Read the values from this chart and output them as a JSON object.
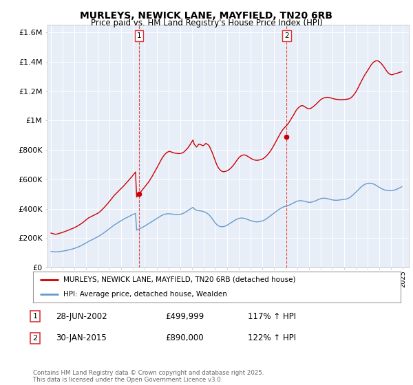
{
  "title": "MURLEYS, NEWICK LANE, MAYFIELD, TN20 6RB",
  "subtitle": "Price paid vs. HM Land Registry's House Price Index (HPI)",
  "background_color": "#ffffff",
  "plot_bg_color": "#e8eef8",
  "legend_label_red": "MURLEYS, NEWICK LANE, MAYFIELD, TN20 6RB (detached house)",
  "legend_label_blue": "HPI: Average price, detached house, Wealden",
  "annotation1_label": "1",
  "annotation1_date": "28-JUN-2002",
  "annotation1_price": "£499,999",
  "annotation1_hpi": "117% ↑ HPI",
  "annotation2_label": "2",
  "annotation2_date": "30-JAN-2015",
  "annotation2_price": "£890,000",
  "annotation2_hpi": "122% ↑ HPI",
  "footer": "Contains HM Land Registry data © Crown copyright and database right 2025.\nThis data is licensed under the Open Government Licence v3.0.",
  "red_color": "#cc0000",
  "blue_color": "#6699cc",
  "vline_color": "#dd3333",
  "ylim": [
    0,
    1650000
  ],
  "yticks": [
    0,
    200000,
    400000,
    600000,
    800000,
    1000000,
    1200000,
    1400000,
    1600000
  ],
  "ytick_labels": [
    "£0",
    "£200K",
    "£400K",
    "£600K",
    "£800K",
    "£1M",
    "£1.2M",
    "£1.4M",
    "£1.6M"
  ],
  "xmin": 1994.7,
  "xmax": 2025.5,
  "red_x": [
    1995.0,
    1995.1,
    1995.2,
    1995.3,
    1995.4,
    1995.5,
    1995.6,
    1995.7,
    1995.8,
    1995.9,
    1996.0,
    1996.1,
    1996.2,
    1996.3,
    1996.4,
    1996.5,
    1996.6,
    1996.7,
    1996.8,
    1996.9,
    1997.0,
    1997.1,
    1997.2,
    1997.3,
    1997.4,
    1997.5,
    1997.6,
    1997.7,
    1997.8,
    1997.9,
    1998.0,
    1998.1,
    1998.2,
    1998.3,
    1998.4,
    1998.5,
    1998.6,
    1998.7,
    1998.8,
    1998.9,
    1999.0,
    1999.1,
    1999.2,
    1999.3,
    1999.4,
    1999.5,
    1999.6,
    1999.7,
    1999.8,
    1999.9,
    2000.0,
    2000.1,
    2000.2,
    2000.3,
    2000.4,
    2000.5,
    2000.6,
    2000.7,
    2000.8,
    2000.9,
    2001.0,
    2001.1,
    2001.2,
    2001.3,
    2001.4,
    2001.5,
    2001.6,
    2001.7,
    2001.8,
    2001.9,
    2002.0,
    2002.1,
    2002.2,
    2002.3,
    2002.4,
    2002.5,
    2002.6,
    2002.7,
    2002.8,
    2002.9,
    2003.0,
    2003.1,
    2003.2,
    2003.3,
    2003.4,
    2003.5,
    2003.6,
    2003.7,
    2003.8,
    2003.9,
    2004.0,
    2004.1,
    2004.2,
    2004.3,
    2004.4,
    2004.5,
    2004.6,
    2004.7,
    2004.8,
    2004.9,
    2005.0,
    2005.1,
    2005.2,
    2005.3,
    2005.4,
    2005.5,
    2005.6,
    2005.7,
    2005.8,
    2005.9,
    2006.0,
    2006.1,
    2006.2,
    2006.3,
    2006.4,
    2006.5,
    2006.6,
    2006.7,
    2006.8,
    2006.9,
    2007.0,
    2007.1,
    2007.2,
    2007.3,
    2007.4,
    2007.5,
    2007.6,
    2007.7,
    2007.8,
    2007.9,
    2008.0,
    2008.1,
    2008.2,
    2008.3,
    2008.4,
    2008.5,
    2008.6,
    2008.7,
    2008.8,
    2008.9,
    2009.0,
    2009.1,
    2009.2,
    2009.3,
    2009.4,
    2009.5,
    2009.6,
    2009.7,
    2009.8,
    2009.9,
    2010.0,
    2010.1,
    2010.2,
    2010.3,
    2010.4,
    2010.5,
    2010.6,
    2010.7,
    2010.8,
    2010.9,
    2011.0,
    2011.1,
    2011.2,
    2011.3,
    2011.4,
    2011.5,
    2011.6,
    2011.7,
    2011.8,
    2011.9,
    2012.0,
    2012.1,
    2012.2,
    2012.3,
    2012.4,
    2012.5,
    2012.6,
    2012.7,
    2012.8,
    2012.9,
    2013.0,
    2013.1,
    2013.2,
    2013.3,
    2013.4,
    2013.5,
    2013.6,
    2013.7,
    2013.8,
    2013.9,
    2014.0,
    2014.1,
    2014.2,
    2014.3,
    2014.4,
    2014.5,
    2014.6,
    2014.7,
    2014.8,
    2014.9,
    2015.0,
    2015.1,
    2015.2,
    2015.3,
    2015.4,
    2015.5,
    2015.6,
    2015.7,
    2015.8,
    2015.9,
    2016.0,
    2016.1,
    2016.2,
    2016.3,
    2016.4,
    2016.5,
    2016.6,
    2016.7,
    2016.8,
    2016.9,
    2017.0,
    2017.1,
    2017.2,
    2017.3,
    2017.4,
    2017.5,
    2017.6,
    2017.7,
    2017.8,
    2017.9,
    2018.0,
    2018.1,
    2018.2,
    2018.3,
    2018.4,
    2018.5,
    2018.6,
    2018.7,
    2018.8,
    2018.9,
    2019.0,
    2019.1,
    2019.2,
    2019.3,
    2019.4,
    2019.5,
    2019.6,
    2019.7,
    2019.8,
    2019.9,
    2020.0,
    2020.1,
    2020.2,
    2020.3,
    2020.4,
    2020.5,
    2020.6,
    2020.7,
    2020.8,
    2020.9,
    2021.0,
    2021.1,
    2021.2,
    2021.3,
    2021.4,
    2021.5,
    2021.6,
    2021.7,
    2021.8,
    2021.9,
    2022.0,
    2022.1,
    2022.2,
    2022.3,
    2022.4,
    2022.5,
    2022.6,
    2022.7,
    2022.8,
    2022.9,
    2023.0,
    2023.1,
    2023.2,
    2023.3,
    2023.4,
    2023.5,
    2023.6,
    2023.7,
    2023.8,
    2023.9,
    2024.0,
    2024.1,
    2024.2,
    2024.3,
    2024.4,
    2024.5,
    2024.6,
    2024.7,
    2024.8,
    2024.9
  ],
  "red_y": [
    235000,
    232000,
    230000,
    228000,
    226000,
    228000,
    230000,
    233000,
    235000,
    237000,
    240000,
    243000,
    246000,
    249000,
    252000,
    255000,
    258000,
    262000,
    265000,
    268000,
    272000,
    276000,
    280000,
    285000,
    290000,
    295000,
    300000,
    306000,
    312000,
    318000,
    325000,
    332000,
    338000,
    342000,
    346000,
    350000,
    354000,
    358000,
    362000,
    366000,
    370000,
    376000,
    382000,
    390000,
    398000,
    406000,
    415000,
    424000,
    433000,
    442000,
    452000,
    462000,
    472000,
    482000,
    492000,
    500000,
    508000,
    516000,
    524000,
    532000,
    540000,
    548000,
    556000,
    565000,
    574000,
    583000,
    592000,
    601000,
    610000,
    619000,
    630000,
    640000,
    650000,
    480000,
    490000,
    500000,
    510000,
    520000,
    530000,
    540000,
    550000,
    560000,
    570000,
    580000,
    592000,
    605000,
    618000,
    632000,
    646000,
    660000,
    675000,
    690000,
    705000,
    720000,
    735000,
    748000,
    760000,
    770000,
    778000,
    784000,
    788000,
    790000,
    788000,
    785000,
    782000,
    780000,
    778000,
    777000,
    776000,
    775000,
    776000,
    778000,
    780000,
    785000,
    792000,
    800000,
    808000,
    818000,
    830000,
    842000,
    856000,
    868000,
    840000,
    830000,
    820000,
    830000,
    840000,
    838000,
    835000,
    830000,
    830000,
    838000,
    845000,
    840000,
    835000,
    825000,
    808000,
    790000,
    770000,
    748000,
    725000,
    705000,
    688000,
    675000,
    665000,
    658000,
    654000,
    652000,
    653000,
    655000,
    658000,
    662000,
    668000,
    675000,
    683000,
    692000,
    702000,
    713000,
    725000,
    736000,
    746000,
    754000,
    760000,
    764000,
    766000,
    766000,
    764000,
    760000,
    755000,
    750000,
    745000,
    740000,
    736000,
    733000,
    731000,
    730000,
    730000,
    731000,
    733000,
    735000,
    738000,
    742000,
    748000,
    755000,
    763000,
    772000,
    782000,
    793000,
    805000,
    818000,
    832000,
    847000,
    862000,
    877000,
    892000,
    906000,
    920000,
    932000,
    943000,
    952000,
    960000,
    968000,
    978000,
    990000,
    1003000,
    1016000,
    1029000,
    1042000,
    1056000,
    1070000,
    1080000,
    1088000,
    1095000,
    1100000,
    1102000,
    1100000,
    1096000,
    1090000,
    1085000,
    1082000,
    1080000,
    1082000,
    1086000,
    1092000,
    1098000,
    1105000,
    1112000,
    1120000,
    1128000,
    1136000,
    1143000,
    1148000,
    1152000,
    1155000,
    1157000,
    1158000,
    1158000,
    1157000,
    1155000,
    1153000,
    1150000,
    1148000,
    1146000,
    1145000,
    1144000,
    1143000,
    1143000,
    1142000,
    1142000,
    1143000,
    1143000,
    1144000,
    1145000,
    1146000,
    1148000,
    1152000,
    1158000,
    1165000,
    1175000,
    1185000,
    1198000,
    1212000,
    1228000,
    1244000,
    1260000,
    1275000,
    1290000,
    1305000,
    1318000,
    1330000,
    1342000,
    1355000,
    1368000,
    1380000,
    1390000,
    1398000,
    1403000,
    1406000,
    1407000,
    1405000,
    1400000,
    1392000,
    1383000,
    1373000,
    1362000,
    1350000,
    1338000,
    1328000,
    1320000,
    1315000,
    1312000,
    1312000,
    1315000,
    1318000,
    1320000,
    1322000,
    1325000,
    1328000,
    1330000,
    1332000
  ],
  "blue_x": [
    1995.0,
    1995.1,
    1995.2,
    1995.3,
    1995.4,
    1995.5,
    1995.6,
    1995.7,
    1995.8,
    1995.9,
    1996.0,
    1996.1,
    1996.2,
    1996.3,
    1996.4,
    1996.5,
    1996.6,
    1996.7,
    1996.8,
    1996.9,
    1997.0,
    1997.1,
    1997.2,
    1997.3,
    1997.4,
    1997.5,
    1997.6,
    1997.7,
    1997.8,
    1997.9,
    1998.0,
    1998.1,
    1998.2,
    1998.3,
    1998.4,
    1998.5,
    1998.6,
    1998.7,
    1998.8,
    1998.9,
    1999.0,
    1999.1,
    1999.2,
    1999.3,
    1999.4,
    1999.5,
    1999.6,
    1999.7,
    1999.8,
    1999.9,
    2000.0,
    2000.1,
    2000.2,
    2000.3,
    2000.4,
    2000.5,
    2000.6,
    2000.7,
    2000.8,
    2000.9,
    2001.0,
    2001.1,
    2001.2,
    2001.3,
    2001.4,
    2001.5,
    2001.6,
    2001.7,
    2001.8,
    2001.9,
    2002.0,
    2002.1,
    2002.2,
    2002.3,
    2002.4,
    2002.5,
    2002.6,
    2002.7,
    2002.8,
    2002.9,
    2003.0,
    2003.1,
    2003.2,
    2003.3,
    2003.4,
    2003.5,
    2003.6,
    2003.7,
    2003.8,
    2003.9,
    2004.0,
    2004.1,
    2004.2,
    2004.3,
    2004.4,
    2004.5,
    2004.6,
    2004.7,
    2004.8,
    2004.9,
    2005.0,
    2005.1,
    2005.2,
    2005.3,
    2005.4,
    2005.5,
    2005.6,
    2005.7,
    2005.8,
    2005.9,
    2006.0,
    2006.1,
    2006.2,
    2006.3,
    2006.4,
    2006.5,
    2006.6,
    2006.7,
    2006.8,
    2006.9,
    2007.0,
    2007.1,
    2007.2,
    2007.3,
    2007.4,
    2007.5,
    2007.6,
    2007.7,
    2007.8,
    2007.9,
    2008.0,
    2008.1,
    2008.2,
    2008.3,
    2008.4,
    2008.5,
    2008.6,
    2008.7,
    2008.8,
    2008.9,
    2009.0,
    2009.1,
    2009.2,
    2009.3,
    2009.4,
    2009.5,
    2009.6,
    2009.7,
    2009.8,
    2009.9,
    2010.0,
    2010.1,
    2010.2,
    2010.3,
    2010.4,
    2010.5,
    2010.6,
    2010.7,
    2010.8,
    2010.9,
    2011.0,
    2011.1,
    2011.2,
    2011.3,
    2011.4,
    2011.5,
    2011.6,
    2011.7,
    2011.8,
    2011.9,
    2012.0,
    2012.1,
    2012.2,
    2012.3,
    2012.4,
    2012.5,
    2012.6,
    2012.7,
    2012.8,
    2012.9,
    2013.0,
    2013.1,
    2013.2,
    2013.3,
    2013.4,
    2013.5,
    2013.6,
    2013.7,
    2013.8,
    2013.9,
    2014.0,
    2014.1,
    2014.2,
    2014.3,
    2014.4,
    2014.5,
    2014.6,
    2014.7,
    2014.8,
    2014.9,
    2015.0,
    2015.1,
    2015.2,
    2015.3,
    2015.4,
    2015.5,
    2015.6,
    2015.7,
    2015.8,
    2015.9,
    2016.0,
    2016.1,
    2016.2,
    2016.3,
    2016.4,
    2016.5,
    2016.6,
    2016.7,
    2016.8,
    2016.9,
    2017.0,
    2017.1,
    2017.2,
    2017.3,
    2017.4,
    2017.5,
    2017.6,
    2017.7,
    2017.8,
    2017.9,
    2018.0,
    2018.1,
    2018.2,
    2018.3,
    2018.4,
    2018.5,
    2018.6,
    2018.7,
    2018.8,
    2018.9,
    2019.0,
    2019.1,
    2019.2,
    2019.3,
    2019.4,
    2019.5,
    2019.6,
    2019.7,
    2019.8,
    2019.9,
    2020.0,
    2020.1,
    2020.2,
    2020.3,
    2020.4,
    2020.5,
    2020.6,
    2020.7,
    2020.8,
    2020.9,
    2021.0,
    2021.1,
    2021.2,
    2021.3,
    2021.4,
    2021.5,
    2021.6,
    2021.7,
    2021.8,
    2021.9,
    2022.0,
    2022.1,
    2022.2,
    2022.3,
    2022.4,
    2022.5,
    2022.6,
    2022.7,
    2022.8,
    2022.9,
    2023.0,
    2023.1,
    2023.2,
    2023.3,
    2023.4,
    2023.5,
    2023.6,
    2023.7,
    2023.8,
    2023.9,
    2024.0,
    2024.1,
    2024.2,
    2024.3,
    2024.4,
    2024.5,
    2024.6,
    2024.7,
    2024.8,
    2024.9
  ],
  "blue_y": [
    110000,
    109000,
    108000,
    107000,
    107000,
    107000,
    108000,
    109000,
    110000,
    111000,
    112000,
    113000,
    115000,
    116000,
    118000,
    120000,
    122000,
    124000,
    126000,
    128000,
    131000,
    134000,
    137000,
    140000,
    143000,
    147000,
    151000,
    155000,
    159000,
    163000,
    168000,
    173000,
    178000,
    182000,
    186000,
    190000,
    194000,
    198000,
    202000,
    206000,
    210000,
    215000,
    220000,
    225000,
    230000,
    236000,
    242000,
    248000,
    254000,
    260000,
    266000,
    272000,
    278000,
    284000,
    290000,
    295000,
    300000,
    305000,
    310000,
    315000,
    320000,
    325000,
    330000,
    334000,
    338000,
    342000,
    346000,
    350000,
    354000,
    358000,
    362000,
    365000,
    368000,
    255000,
    258000,
    262000,
    266000,
    270000,
    274000,
    278000,
    283000,
    288000,
    293000,
    298000,
    303000,
    308000,
    313000,
    318000,
    323000,
    328000,
    333000,
    338000,
    343000,
    348000,
    353000,
    357000,
    360000,
    363000,
    365000,
    366000,
    366000,
    366000,
    365000,
    364000,
    363000,
    362000,
    361000,
    361000,
    361000,
    361000,
    362000,
    364000,
    367000,
    370000,
    374000,
    379000,
    384000,
    390000,
    395000,
    400000,
    405000,
    410000,
    400000,
    395000,
    390000,
    388000,
    387000,
    386000,
    385000,
    383000,
    381000,
    378000,
    374000,
    370000,
    364000,
    356000,
    347000,
    337000,
    326000,
    315000,
    304000,
    295000,
    288000,
    283000,
    280000,
    278000,
    278000,
    279000,
    281000,
    284000,
    288000,
    293000,
    298000,
    303000,
    308000,
    313000,
    318000,
    323000,
    327000,
    331000,
    334000,
    336000,
    337000,
    337000,
    336000,
    334000,
    332000,
    329000,
    326000,
    323000,
    320000,
    317000,
    315000,
    313000,
    312000,
    311000,
    311000,
    312000,
    313000,
    315000,
    317000,
    320000,
    324000,
    329000,
    334000,
    340000,
    346000,
    352000,
    358000,
    364000,
    370000,
    376000,
    382000,
    388000,
    394000,
    399000,
    404000,
    408000,
    412000,
    415000,
    417000,
    419000,
    422000,
    425000,
    429000,
    433000,
    437000,
    441000,
    445000,
    449000,
    452000,
    454000,
    455000,
    455000,
    454000,
    453000,
    451000,
    449000,
    447000,
    445000,
    444000,
    444000,
    445000,
    447000,
    450000,
    453000,
    456000,
    460000,
    463000,
    466000,
    469000,
    471000,
    472000,
    472000,
    471000,
    470000,
    468000,
    466000,
    464000,
    462000,
    460000,
    459000,
    458000,
    458000,
    458000,
    459000,
    460000,
    461000,
    462000,
    463000,
    464000,
    465000,
    467000,
    470000,
    474000,
    479000,
    485000,
    492000,
    499000,
    506000,
    514000,
    522000,
    530000,
    538000,
    546000,
    553000,
    559000,
    564000,
    568000,
    571000,
    573000,
    574000,
    574000,
    573000,
    571000,
    568000,
    564000,
    560000,
    555000,
    550000,
    545000,
    540000,
    536000,
    532000,
    529000,
    527000,
    525000,
    524000,
    523000,
    523000,
    523000,
    524000,
    526000,
    528000,
    531000,
    534000,
    538000,
    542000,
    546000,
    550000
  ],
  "sale1_x": 2002.49,
  "sale1_y": 499999,
  "sale2_x": 2015.08,
  "sale2_y": 890000
}
